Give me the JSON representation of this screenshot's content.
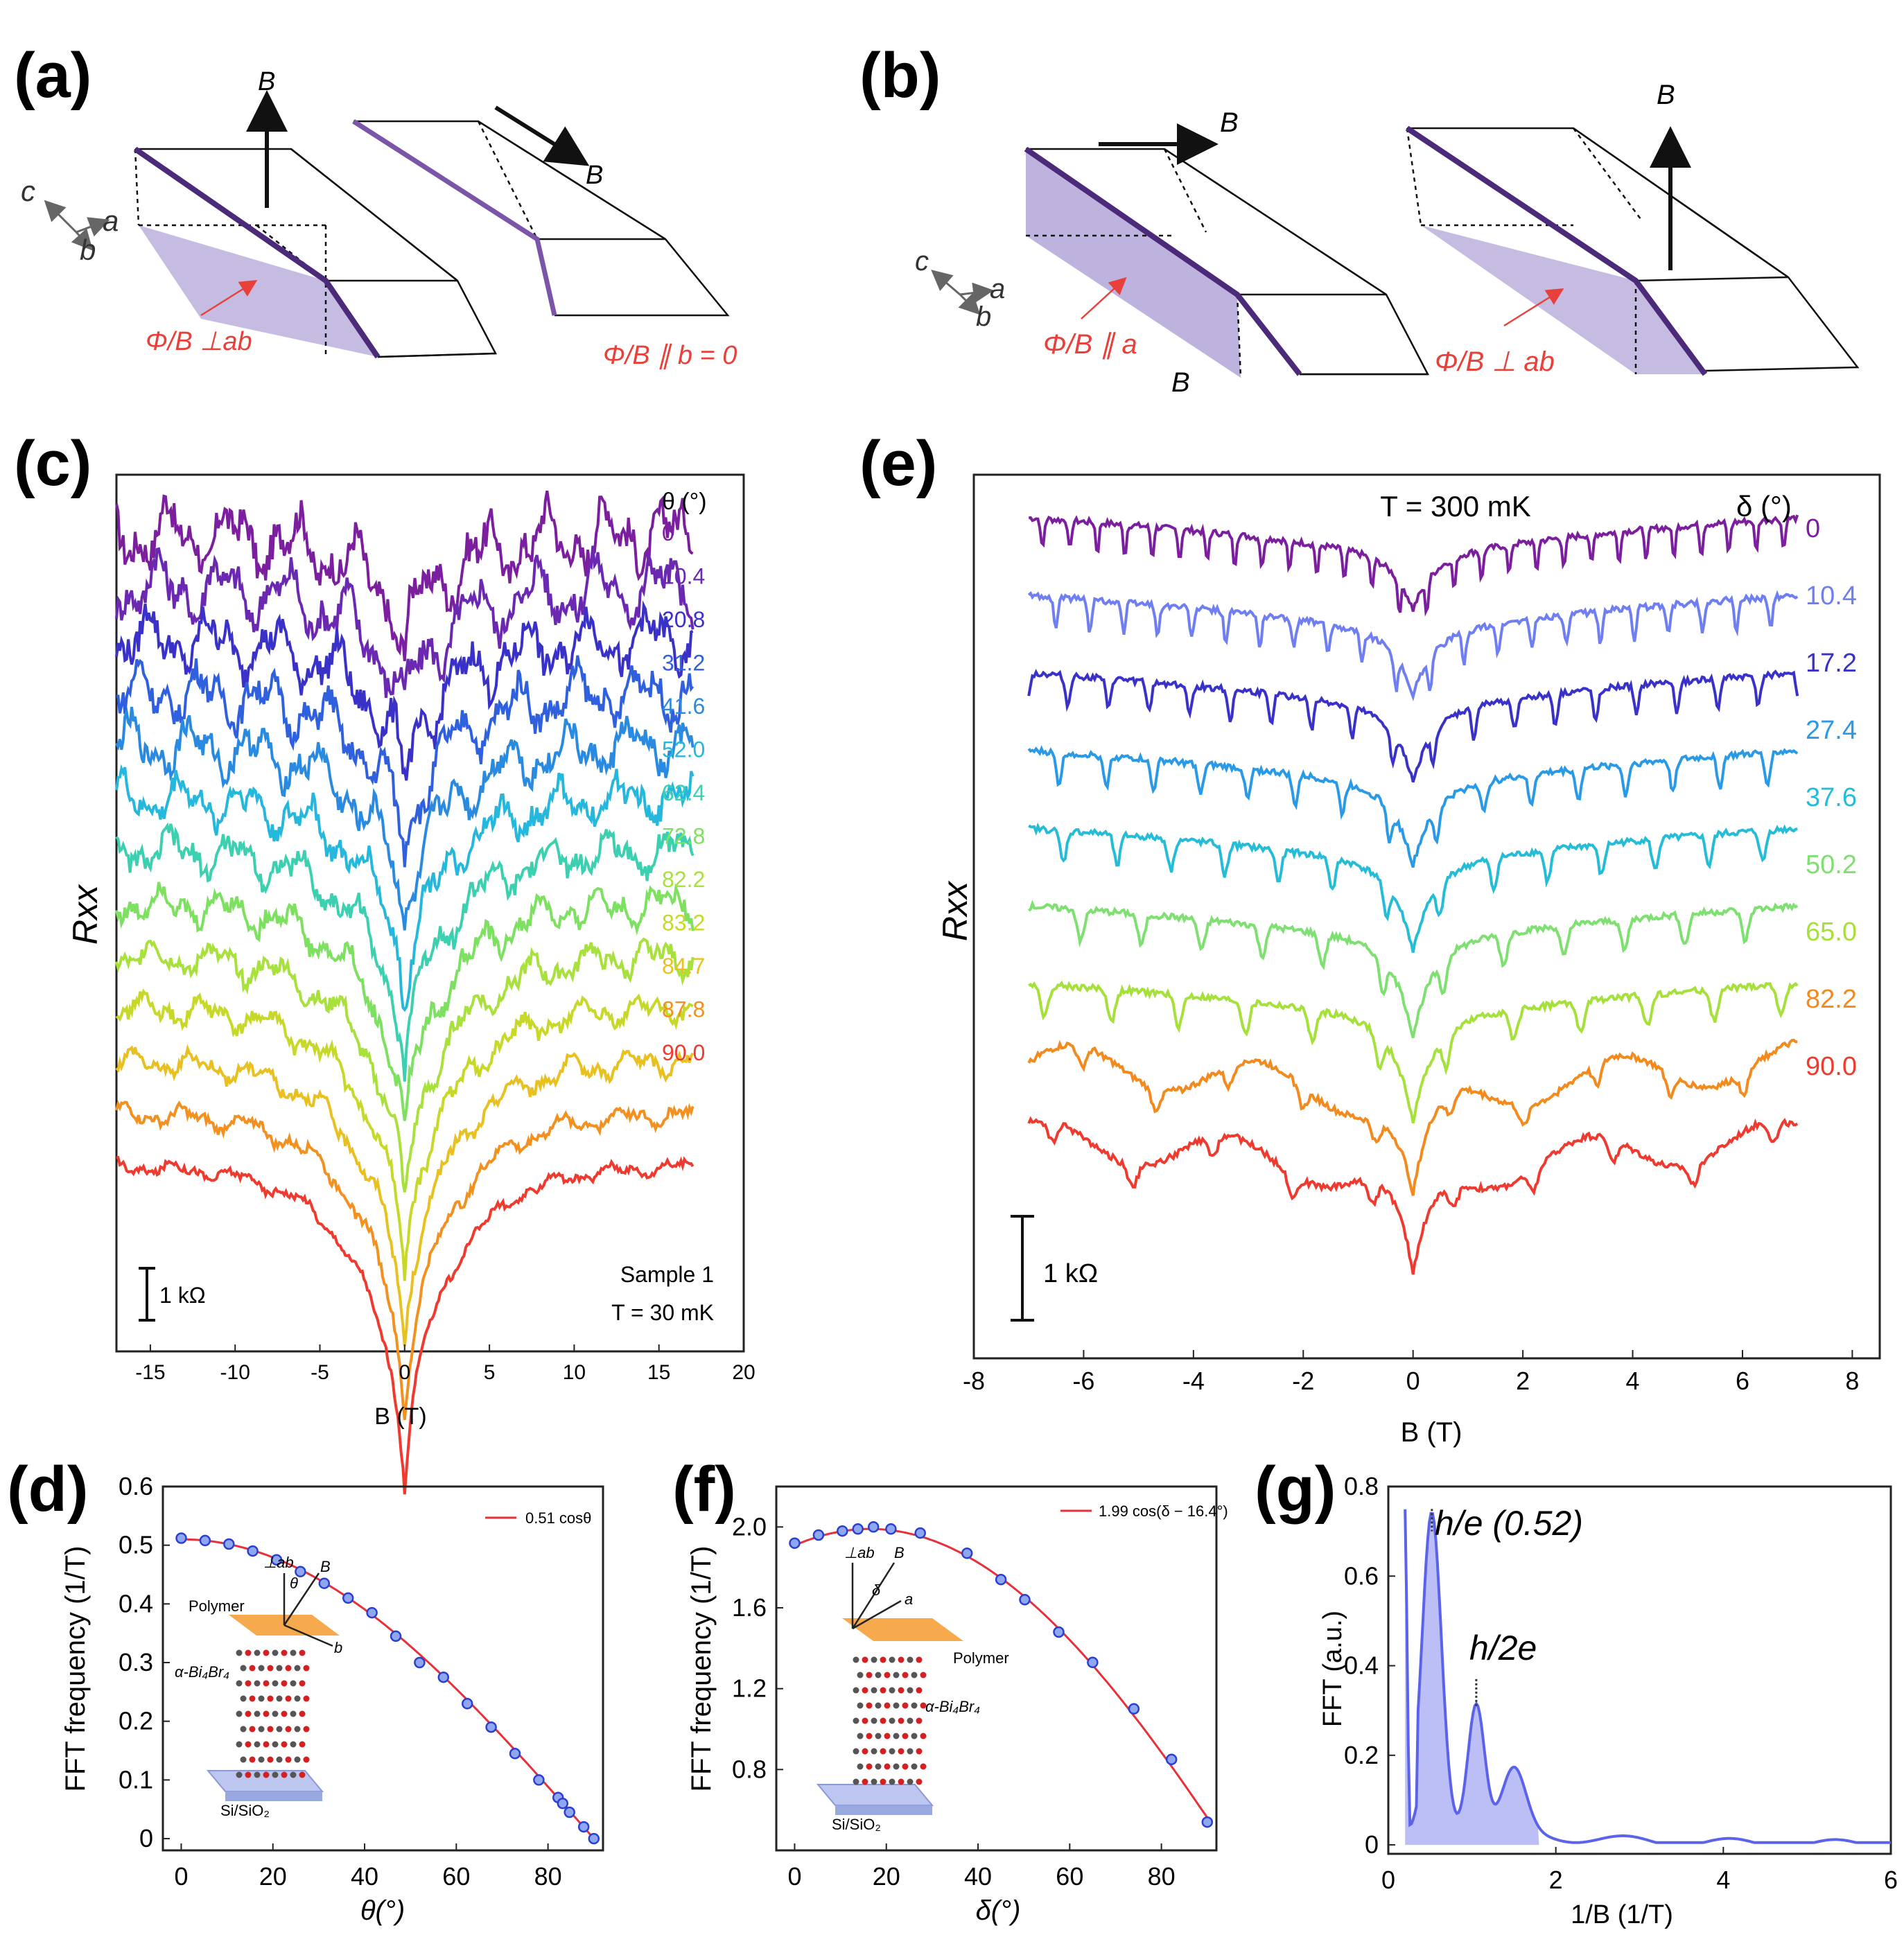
{
  "panel_labels": {
    "a": "(a)",
    "b": "(b)",
    "c": "(c)",
    "d": "(d)",
    "e": "(e)",
    "f": "(f)",
    "g": "(g)"
  },
  "panel_a": {
    "axis_c": "c",
    "axis_a": "a",
    "axis_b": "b",
    "field_left": "B",
    "field_right": "B",
    "flux_left": "Φ/B ⊥ab",
    "flux_right": "Φ/B ∥ b = 0",
    "colors": {
      "edge": "#4b2a7a",
      "face": "#b3a6d8",
      "note": "#e8403a"
    }
  },
  "panel_b": {
    "axis_c": "c",
    "axis_a": "a",
    "axis_b": "b",
    "field_top_left": "B",
    "field_bottom_left": "B",
    "field_right": "B",
    "flux_left": "Φ/B ∥ a",
    "flux_right": "Φ/B ⊥ ab"
  },
  "chart_data": [
    {
      "id": "c",
      "type": "line",
      "xlabel": "B (T)",
      "ylabel": "Rxx",
      "xlim": [
        -17,
        20
      ],
      "xticks": [
        -15,
        -10,
        -5,
        0,
        5,
        10,
        15,
        20
      ],
      "legend_title": "θ (°)",
      "series": [
        {
          "name": "0",
          "color": "#7b1f9e"
        },
        {
          "name": "10.4",
          "color": "#6b28b0"
        },
        {
          "name": "20.8",
          "color": "#3a32c8"
        },
        {
          "name": "31.2",
          "color": "#2f60dd"
        },
        {
          "name": "41.6",
          "color": "#2a8ae0"
        },
        {
          "name": "52.0",
          "color": "#25b8dc"
        },
        {
          "name": "62.4",
          "color": "#3dd0b0"
        },
        {
          "name": "72.8",
          "color": "#7ee060"
        },
        {
          "name": "82.2",
          "color": "#a8e03c"
        },
        {
          "name": "83.2",
          "color": "#c8d828"
        },
        {
          "name": "84.7",
          "color": "#e8c020"
        },
        {
          "name": "87.8",
          "color": "#f29020"
        },
        {
          "name": "90.0",
          "color": "#ef3a2f"
        }
      ],
      "scalebar": "1 kΩ",
      "annot_sample": "Sample 1",
      "annot_temp": "T = 30 mK"
    },
    {
      "id": "e",
      "type": "line",
      "xlabel": "B (T)",
      "ylabel": "Rxx",
      "xlim": [
        -8,
        8.5
      ],
      "xticks": [
        -8,
        -6,
        -4,
        -2,
        0,
        2,
        4,
        6,
        8
      ],
      "legend_title": "δ (°)",
      "series": [
        {
          "name": "0",
          "color": "#7b1f9e"
        },
        {
          "name": "10.4",
          "color": "#6f7ef0"
        },
        {
          "name": "17.2",
          "color": "#3a32c8"
        },
        {
          "name": "27.4",
          "color": "#2a9ae6"
        },
        {
          "name": "37.6",
          "color": "#25bcd8"
        },
        {
          "name": "50.2",
          "color": "#7ee070"
        },
        {
          "name": "65.0",
          "color": "#a6e03a"
        },
        {
          "name": "82.2",
          "color": "#f28a1e"
        },
        {
          "name": "90.0",
          "color": "#ef3a2f"
        }
      ],
      "scalebar": "1 kΩ",
      "annot_temp": "T = 300 mK"
    },
    {
      "id": "d",
      "type": "scatter",
      "xlabel": "θ(°)",
      "ylabel": "FFT frequency (1/T)",
      "xlim": [
        -4,
        92
      ],
      "ylim": [
        -0.02,
        0.6
      ],
      "xticks": [
        0,
        20,
        40,
        60,
        80
      ],
      "yticks": [
        0,
        0.1,
        0.2,
        0.3,
        0.4,
        0.5,
        0.6
      ],
      "x": [
        0,
        5.2,
        10.4,
        15.6,
        20.8,
        26,
        31.2,
        36.4,
        41.6,
        46.8,
        52,
        57.2,
        62.4,
        67.6,
        72.8,
        78,
        82.2,
        83.2,
        84.7,
        87.8,
        90
      ],
      "y": [
        0.512,
        0.508,
        0.502,
        0.49,
        0.475,
        0.455,
        0.435,
        0.41,
        0.385,
        0.345,
        0.3,
        0.275,
        0.23,
        0.19,
        0.145,
        0.1,
        0.07,
        0.06,
        0.045,
        0.02,
        0.0
      ],
      "fit_label": "0.51 cosθ",
      "fit_amp": 0.51,
      "fit_phase": 0,
      "inset": {
        "perp": "⊥ab",
        "theta": "θ",
        "field": "B",
        "b": "b",
        "polymer": "Polymer",
        "crystal": "α-Bi₄Br₄",
        "substrate": "Si/SiO₂"
      }
    },
    {
      "id": "f",
      "type": "scatter",
      "xlabel": "δ(°)",
      "ylabel": "FFT frequency (1/T)",
      "xlim": [
        -4,
        92
      ],
      "ylim": [
        0.4,
        2.2
      ],
      "xticks": [
        0,
        20,
        40,
        60,
        80
      ],
      "yticks": [
        0.8,
        1.2,
        1.6,
        2.0
      ],
      "x": [
        0,
        5.2,
        10.4,
        13.8,
        17.2,
        21,
        27.4,
        37.6,
        45,
        50.2,
        57.6,
        65,
        74,
        82.2,
        90
      ],
      "y": [
        1.92,
        1.96,
        1.98,
        1.99,
        2.0,
        1.99,
        1.97,
        1.87,
        1.74,
        1.64,
        1.48,
        1.33,
        1.1,
        0.85,
        0.54
      ],
      "fit_label": "1.99 cos(δ − 16.4°)",
      "fit_amp": 1.99,
      "fit_phase": 16.4,
      "inset": {
        "perp": "⊥ab",
        "delta": "δ",
        "field": "B",
        "a": "a",
        "polymer": "Polymer",
        "crystal": "α-Bi₄Br₄",
        "substrate": "Si/SiO₂"
      }
    },
    {
      "id": "g",
      "type": "area",
      "xlabel": "1/B (1/T)",
      "ylabel": "FFT (a.u.)",
      "xlim": [
        0,
        6
      ],
      "ylim": [
        -0.02,
        0.8
      ],
      "xticks": [
        0,
        2,
        4,
        6
      ],
      "yticks": [
        0,
        0.2,
        0.4,
        0.6,
        0.8
      ],
      "annot_he": "h/e (0.52)",
      "annot_h2e": "h/2e",
      "color": "#5a63ea",
      "fill": "#bcbef6"
    }
  ]
}
